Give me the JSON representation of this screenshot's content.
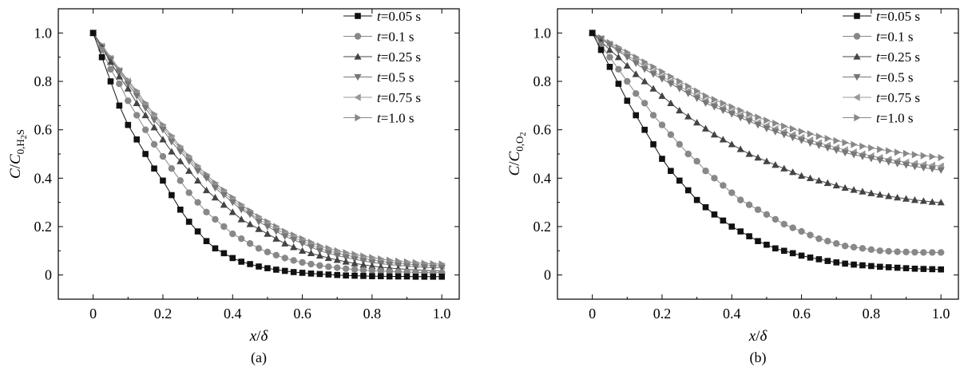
{
  "chart_data": [
    {
      "type": "line",
      "panel_label": "(a)",
      "xlabel": "x/δ",
      "ylabel": "C/C0,H2S",
      "xlim": [
        -0.1,
        1.05
      ],
      "ylim": [
        -0.1,
        1.1
      ],
      "xticks": [
        0,
        0.2,
        0.4,
        0.6,
        0.8,
        1.0
      ],
      "xtick_labels": [
        "0",
        "0.2",
        "0.4",
        "0.6",
        "0.8",
        "1.0"
      ],
      "yticks": [
        0,
        0.2,
        0.4,
        0.6,
        0.8,
        1.0
      ],
      "ytick_labels": [
        "0",
        "0.2",
        "0.4",
        "0.6",
        "0.8",
        "1.0"
      ],
      "grid": false,
      "legend_position": "top-right",
      "x": [
        0,
        0.025,
        0.05,
        0.075,
        0.1,
        0.125,
        0.15,
        0.175,
        0.2,
        0.225,
        0.25,
        0.275,
        0.3,
        0.325,
        0.35,
        0.375,
        0.4,
        0.425,
        0.45,
        0.475,
        0.5,
        0.525,
        0.55,
        0.575,
        0.6,
        0.625,
        0.65,
        0.675,
        0.7,
        0.725,
        0.75,
        0.775,
        0.8,
        0.825,
        0.85,
        0.875,
        0.9,
        0.925,
        0.95,
        0.975,
        1.0
      ],
      "series": [
        {
          "name": "t=0.05 s",
          "marker": "square",
          "color": "#111111",
          "values": [
            1.0,
            0.9,
            0.8,
            0.7,
            0.62,
            0.56,
            0.5,
            0.44,
            0.39,
            0.33,
            0.27,
            0.22,
            0.18,
            0.14,
            0.11,
            0.09,
            0.07,
            0.055,
            0.045,
            0.035,
            0.028,
            0.022,
            0.017,
            0.012,
            0.009,
            0.006,
            0.004,
            0.002,
            0.0,
            -0.002,
            -0.003,
            -0.004,
            -0.005,
            -0.005,
            -0.006,
            -0.006,
            -0.006,
            -0.007,
            -0.007,
            -0.007,
            -0.007
          ]
        },
        {
          "name": "t=0.1 s",
          "marker": "circle",
          "color": "#888888",
          "values": [
            1.0,
            0.93,
            0.85,
            0.79,
            0.72,
            0.66,
            0.6,
            0.54,
            0.49,
            0.44,
            0.39,
            0.34,
            0.3,
            0.26,
            0.23,
            0.2,
            0.17,
            0.15,
            0.13,
            0.11,
            0.095,
            0.082,
            0.07,
            0.06,
            0.052,
            0.045,
            0.039,
            0.034,
            0.03,
            0.026,
            0.023,
            0.02,
            0.018,
            0.016,
            0.014,
            0.013,
            0.012,
            0.011,
            0.01,
            0.01,
            0.01
          ]
        },
        {
          "name": "t=0.25 s",
          "marker": "triangle-up",
          "color": "#444444",
          "values": [
            1.0,
            0.94,
            0.88,
            0.82,
            0.77,
            0.71,
            0.66,
            0.61,
            0.56,
            0.51,
            0.47,
            0.43,
            0.39,
            0.35,
            0.32,
            0.29,
            0.26,
            0.23,
            0.21,
            0.19,
            0.17,
            0.15,
            0.13,
            0.115,
            0.1,
            0.09,
            0.08,
            0.07,
            0.062,
            0.055,
            0.048,
            0.042,
            0.037,
            0.033,
            0.029,
            0.026,
            0.023,
            0.021,
            0.019,
            0.018,
            0.017
          ]
        },
        {
          "name": "t=0.5 s",
          "marker": "triangle-down",
          "color": "#777777",
          "values": [
            1.0,
            0.94,
            0.89,
            0.84,
            0.79,
            0.74,
            0.69,
            0.64,
            0.6,
            0.55,
            0.51,
            0.47,
            0.43,
            0.4,
            0.36,
            0.33,
            0.3,
            0.27,
            0.25,
            0.22,
            0.2,
            0.18,
            0.16,
            0.145,
            0.13,
            0.115,
            0.1,
            0.09,
            0.08,
            0.072,
            0.065,
            0.058,
            0.052,
            0.047,
            0.043,
            0.04,
            0.037,
            0.034,
            0.032,
            0.03,
            0.03
          ]
        },
        {
          "name": "t=0.75 s",
          "marker": "triangle-left",
          "color": "#999999",
          "values": [
            1.0,
            0.945,
            0.895,
            0.845,
            0.8,
            0.75,
            0.7,
            0.655,
            0.61,
            0.565,
            0.52,
            0.48,
            0.44,
            0.405,
            0.37,
            0.34,
            0.31,
            0.28,
            0.255,
            0.23,
            0.21,
            0.19,
            0.17,
            0.155,
            0.14,
            0.125,
            0.11,
            0.1,
            0.09,
            0.082,
            0.075,
            0.068,
            0.062,
            0.057,
            0.052,
            0.048,
            0.045,
            0.042,
            0.04,
            0.038,
            0.037
          ]
        },
        {
          "name": "t=1.0 s",
          "marker": "triangle-right",
          "color": "#888888",
          "values": [
            1.0,
            0.95,
            0.9,
            0.85,
            0.805,
            0.76,
            0.71,
            0.665,
            0.62,
            0.575,
            0.53,
            0.49,
            0.45,
            0.415,
            0.38,
            0.35,
            0.32,
            0.29,
            0.265,
            0.24,
            0.22,
            0.2,
            0.18,
            0.165,
            0.15,
            0.135,
            0.12,
            0.11,
            0.1,
            0.092,
            0.085,
            0.078,
            0.072,
            0.066,
            0.061,
            0.057,
            0.054,
            0.051,
            0.048,
            0.046,
            0.045
          ]
        }
      ]
    },
    {
      "type": "line",
      "panel_label": "(b)",
      "xlabel": "x/δ",
      "ylabel": "C/C0,O2",
      "xlim": [
        -0.1,
        1.05
      ],
      "ylim": [
        -0.1,
        1.1
      ],
      "xticks": [
        0,
        0.2,
        0.4,
        0.6,
        0.8,
        1.0
      ],
      "xtick_labels": [
        "0",
        "0.2",
        "0.4",
        "0.6",
        "0.8",
        "1.0"
      ],
      "yticks": [
        0,
        0.2,
        0.4,
        0.6,
        0.8,
        1.0
      ],
      "ytick_labels": [
        "0",
        "0.2",
        "0.4",
        "0.6",
        "0.8",
        "1.0"
      ],
      "grid": false,
      "legend_position": "top-right",
      "x": [
        0,
        0.025,
        0.05,
        0.075,
        0.1,
        0.125,
        0.15,
        0.175,
        0.2,
        0.225,
        0.25,
        0.275,
        0.3,
        0.325,
        0.35,
        0.375,
        0.4,
        0.425,
        0.45,
        0.475,
        0.5,
        0.525,
        0.55,
        0.575,
        0.6,
        0.625,
        0.65,
        0.675,
        0.7,
        0.725,
        0.75,
        0.775,
        0.8,
        0.825,
        0.85,
        0.875,
        0.9,
        0.925,
        0.95,
        0.975,
        1.0
      ],
      "series": [
        {
          "name": "t=0.05 s",
          "marker": "square",
          "color": "#111111",
          "values": [
            1.0,
            0.93,
            0.86,
            0.79,
            0.72,
            0.66,
            0.6,
            0.54,
            0.48,
            0.43,
            0.39,
            0.35,
            0.31,
            0.28,
            0.25,
            0.225,
            0.2,
            0.18,
            0.16,
            0.14,
            0.125,
            0.11,
            0.1,
            0.09,
            0.08,
            0.072,
            0.065,
            0.058,
            0.052,
            0.047,
            0.043,
            0.04,
            0.037,
            0.034,
            0.032,
            0.03,
            0.028,
            0.026,
            0.025,
            0.024,
            0.023
          ]
        },
        {
          "name": "t=0.1 s",
          "marker": "circle",
          "color": "#888888",
          "values": [
            1.0,
            0.95,
            0.9,
            0.85,
            0.8,
            0.75,
            0.71,
            0.66,
            0.62,
            0.58,
            0.54,
            0.5,
            0.47,
            0.43,
            0.4,
            0.37,
            0.34,
            0.31,
            0.29,
            0.27,
            0.25,
            0.23,
            0.21,
            0.195,
            0.18,
            0.165,
            0.15,
            0.14,
            0.13,
            0.12,
            0.115,
            0.11,
            0.105,
            0.1,
            0.098,
            0.096,
            0.095,
            0.094,
            0.093,
            0.093,
            0.093
          ]
        },
        {
          "name": "t=0.25 s",
          "marker": "triangle-up",
          "color": "#444444",
          "values": [
            1.0,
            0.965,
            0.93,
            0.9,
            0.865,
            0.83,
            0.8,
            0.77,
            0.74,
            0.71,
            0.68,
            0.655,
            0.63,
            0.605,
            0.58,
            0.56,
            0.54,
            0.52,
            0.5,
            0.485,
            0.47,
            0.455,
            0.44,
            0.425,
            0.41,
            0.4,
            0.39,
            0.38,
            0.37,
            0.36,
            0.352,
            0.345,
            0.338,
            0.332,
            0.326,
            0.32,
            0.315,
            0.31,
            0.306,
            0.302,
            0.3
          ]
        },
        {
          "name": "t=0.5 s",
          "marker": "triangle-down",
          "color": "#777777",
          "values": [
            1.0,
            0.975,
            0.95,
            0.925,
            0.9,
            0.875,
            0.85,
            0.83,
            0.81,
            0.79,
            0.77,
            0.75,
            0.73,
            0.71,
            0.695,
            0.68,
            0.665,
            0.65,
            0.635,
            0.62,
            0.605,
            0.592,
            0.58,
            0.568,
            0.556,
            0.545,
            0.535,
            0.525,
            0.515,
            0.505,
            0.497,
            0.489,
            0.481,
            0.474,
            0.467,
            0.46,
            0.454,
            0.448,
            0.443,
            0.438,
            0.433
          ]
        },
        {
          "name": "t=0.75 s",
          "marker": "triangle-left",
          "color": "#999999",
          "values": [
            1.0,
            0.977,
            0.954,
            0.931,
            0.908,
            0.885,
            0.862,
            0.84,
            0.82,
            0.8,
            0.78,
            0.76,
            0.74,
            0.72,
            0.705,
            0.69,
            0.675,
            0.66,
            0.645,
            0.63,
            0.617,
            0.604,
            0.592,
            0.58,
            0.568,
            0.557,
            0.546,
            0.536,
            0.526,
            0.517,
            0.508,
            0.5,
            0.492,
            0.485,
            0.478,
            0.472,
            0.466,
            0.461,
            0.457,
            0.453,
            0.45
          ]
        },
        {
          "name": "t=1.0 s",
          "marker": "triangle-right",
          "color": "#888888",
          "values": [
            1.0,
            0.98,
            0.96,
            0.94,
            0.92,
            0.9,
            0.88,
            0.86,
            0.84,
            0.82,
            0.8,
            0.78,
            0.76,
            0.74,
            0.725,
            0.71,
            0.695,
            0.68,
            0.665,
            0.652,
            0.639,
            0.627,
            0.615,
            0.604,
            0.593,
            0.583,
            0.573,
            0.564,
            0.555,
            0.547,
            0.539,
            0.532,
            0.525,
            0.519,
            0.513,
            0.507,
            0.502,
            0.497,
            0.493,
            0.489,
            0.485
          ]
        }
      ]
    }
  ]
}
